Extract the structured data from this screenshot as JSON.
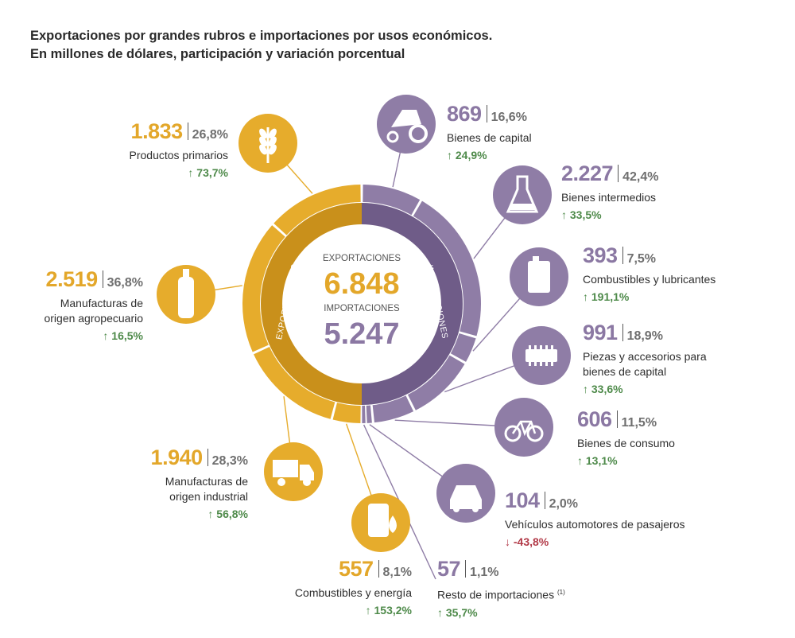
{
  "title": {
    "line1": "Exportaciones por grandes rubros e importaciones por usos económicos.",
    "line2": "En millones de dólares, participación y variación porcentual"
  },
  "colors": {
    "exports": "#E6AC2C",
    "exports_inner": "#C9901B",
    "imports": "#8F7DA6",
    "imports_inner": "#6F5C88",
    "center_text_exp": "#E3A72A",
    "center_text_imp": "#8B78A3",
    "up": "#4E8A4A",
    "down": "#B23A48"
  },
  "chart_data": {
    "type": "donut",
    "center": {
      "exports_label": "EXPORTACIONES",
      "exports_total": "6.848",
      "imports_label": "IMPORTACIONES",
      "imports_total": "5.247"
    },
    "ring_labels": {
      "exports": "EXPORTACIONES",
      "imports": "IMPORTACIONES"
    },
    "exports": [
      {
        "name": "Productos primarios",
        "value": 1833,
        "value_label": "1.833",
        "share": "26,8%",
        "change": "73,7%",
        "direction": "up",
        "icon": "wheat-icon"
      },
      {
        "name": "Manufacturas de origen agropecuario",
        "name_lines": [
          "Manufacturas de",
          "origen agropecuario"
        ],
        "value": 2519,
        "value_label": "2.519",
        "share": "36,8%",
        "change": "16,5%",
        "direction": "up",
        "icon": "bottle-icon"
      },
      {
        "name": "Manufacturas de origen industrial",
        "name_lines": [
          "Manufacturas de",
          "origen industrial"
        ],
        "value": 1940,
        "value_label": "1.940",
        "share": "28,3%",
        "change": "56,8%",
        "direction": "up",
        "icon": "truck-icon"
      },
      {
        "name": "Combustibles y energía",
        "value": 557,
        "value_label": "557",
        "share": "8,1%",
        "change": "153,2%",
        "direction": "up",
        "icon": "oil-barrel-icon"
      }
    ],
    "imports": [
      {
        "name": "Bienes de capital",
        "value": 869,
        "value_label": "869",
        "share": "16,6%",
        "change": "24,9%",
        "direction": "up",
        "icon": "tractor-icon"
      },
      {
        "name": "Bienes intermedios",
        "value": 2227,
        "value_label": "2.227",
        "share": "42,4%",
        "change": "33,5%",
        "direction": "up",
        "icon": "flask-icon"
      },
      {
        "name": "Combustibles y lubricantes",
        "value": 393,
        "value_label": "393",
        "share": "7,5%",
        "change": "191,1%",
        "direction": "up",
        "icon": "jerrycan-icon"
      },
      {
        "name": "Piezas y accesorios para bienes de capital",
        "name_lines": [
          "Piezas y accesorios para",
          "bienes de capital"
        ],
        "value": 991,
        "value_label": "991",
        "share": "18,9%",
        "change": "33,6%",
        "direction": "up",
        "icon": "gear-part-icon"
      },
      {
        "name": "Bienes de consumo",
        "value": 606,
        "value_label": "606",
        "share": "11,5%",
        "change": "13,1%",
        "direction": "up",
        "icon": "bicycle-icon"
      },
      {
        "name": "Vehículos automotores de pasajeros",
        "value": 104,
        "value_label": "104",
        "share": "2,0%",
        "change": "-43,8%",
        "direction": "down",
        "icon": "car-icon"
      },
      {
        "name": "Resto de importaciones",
        "name_suffix": "(1)",
        "value": 57,
        "value_label": "57",
        "share": "1,1%",
        "change": "35,7%",
        "direction": "up",
        "icon": ""
      }
    ]
  }
}
